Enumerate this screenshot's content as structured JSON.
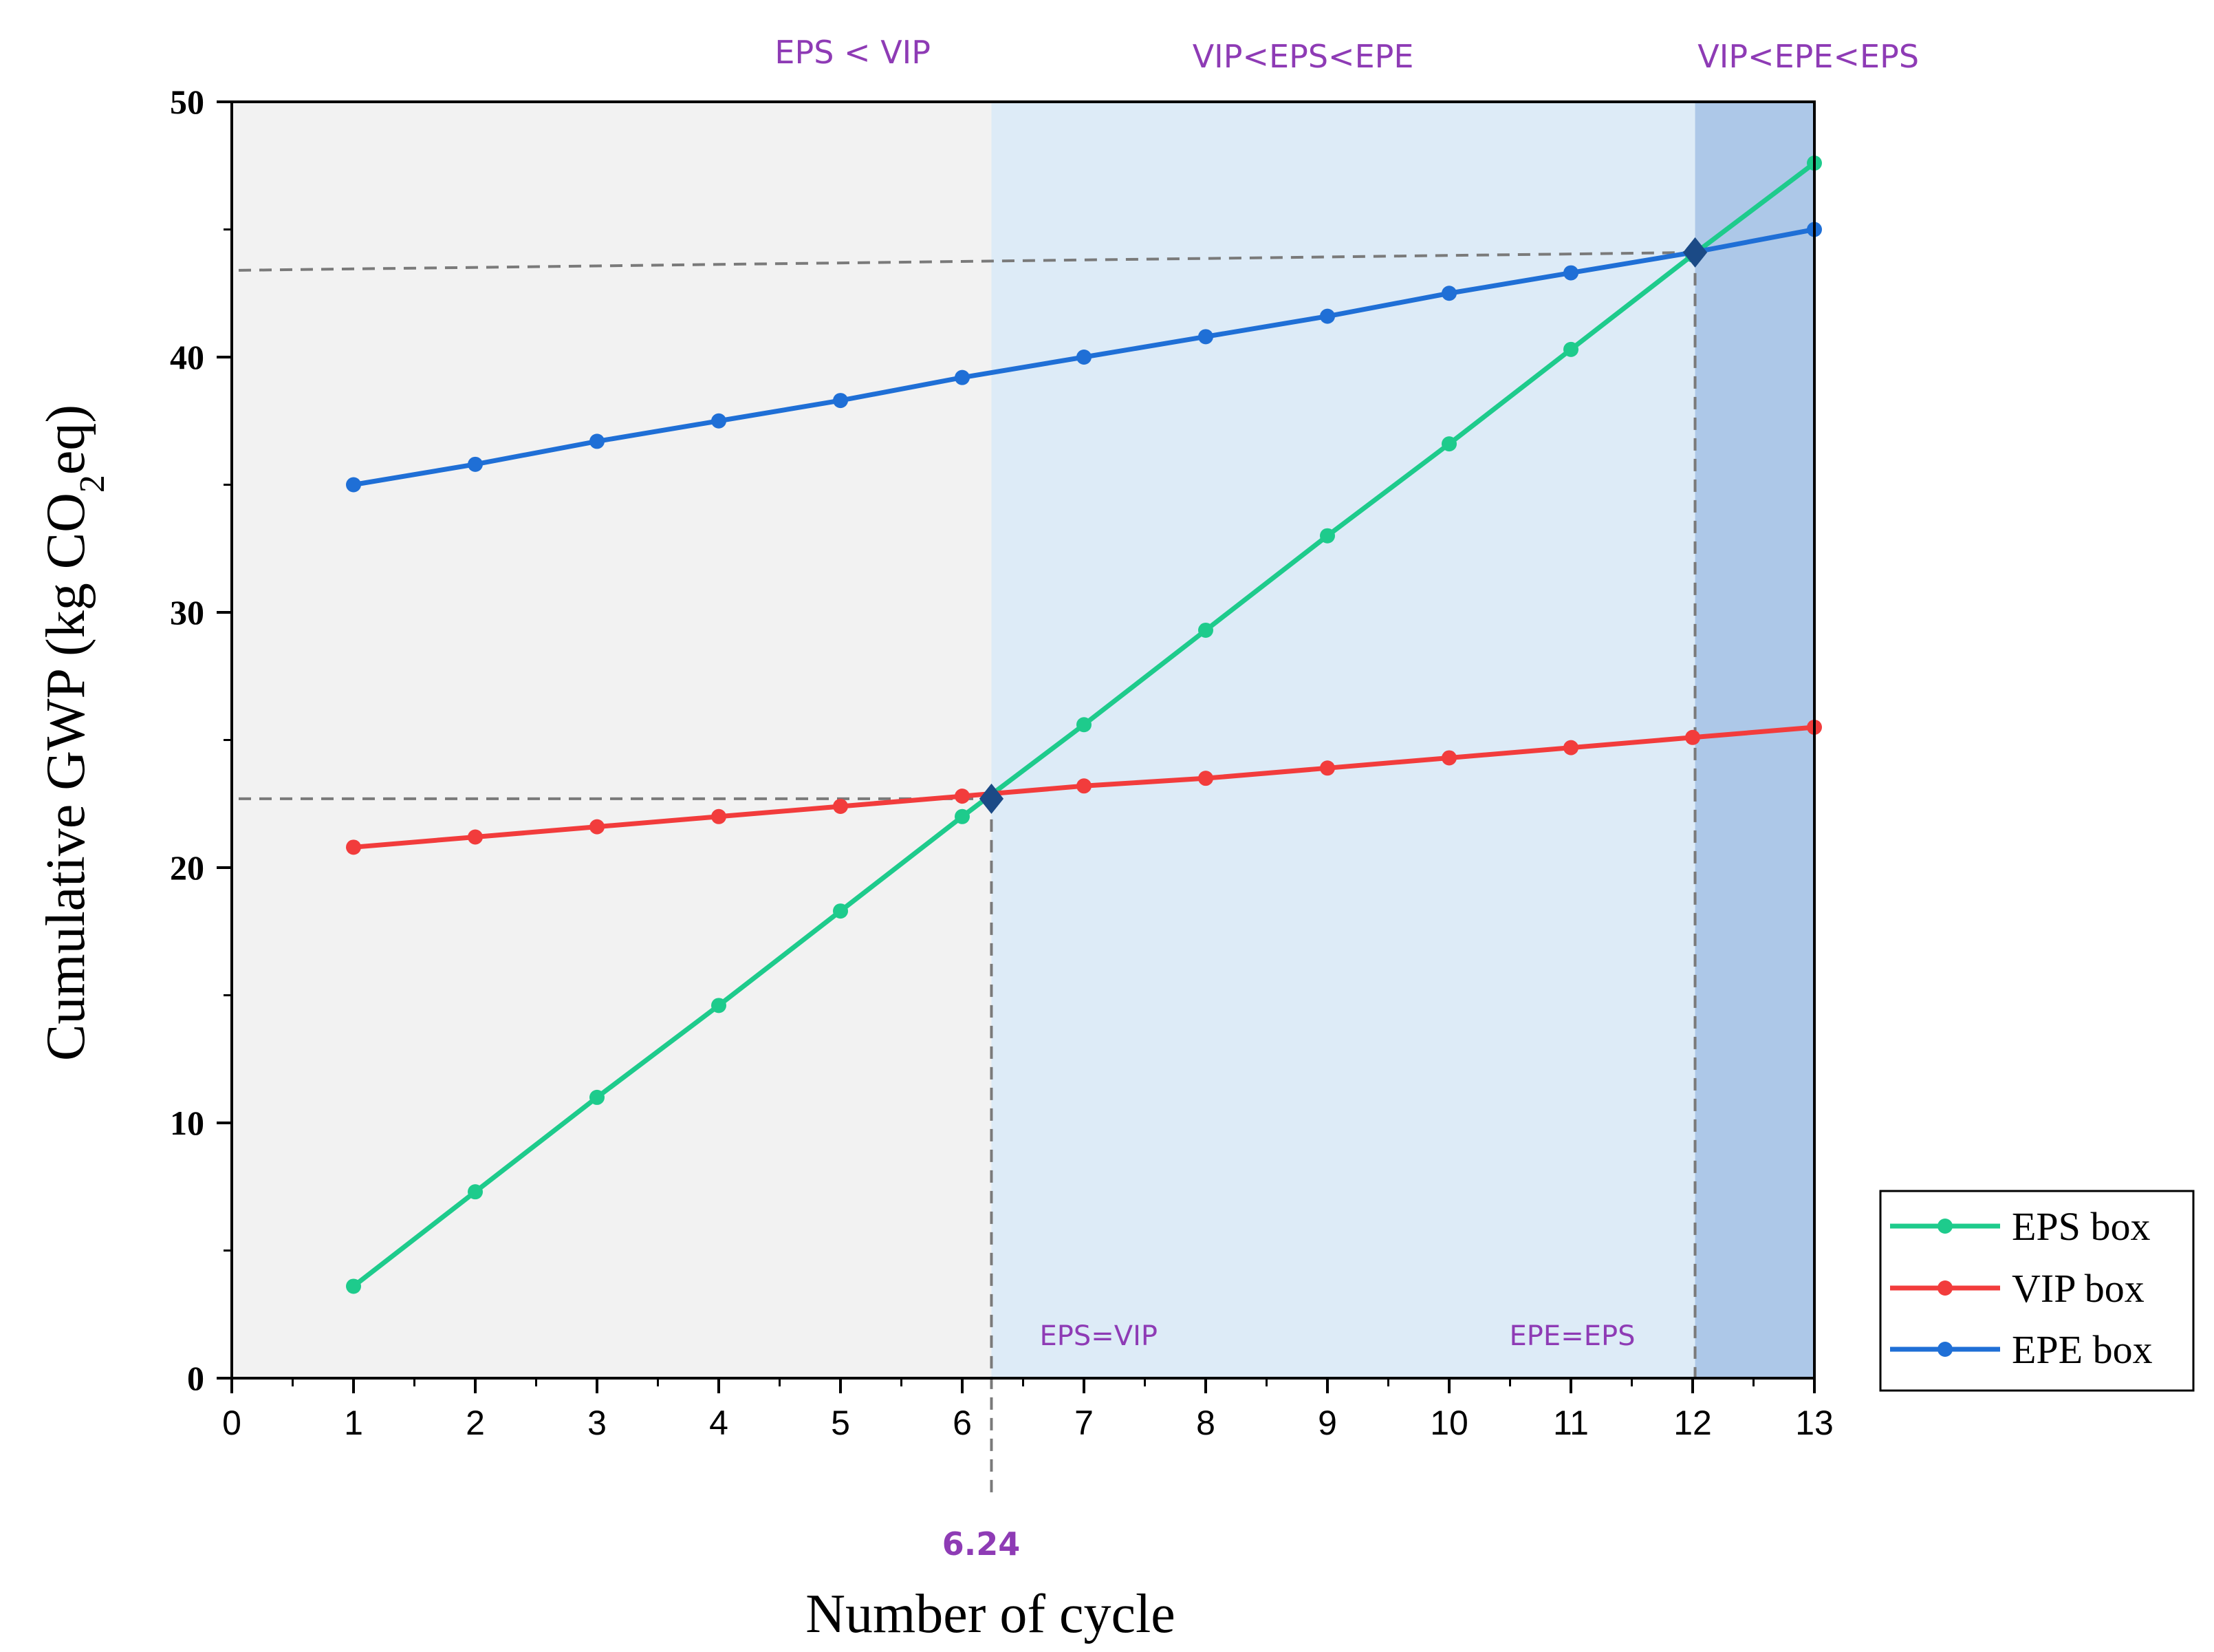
{
  "chart_data": {
    "type": "line",
    "xlabel": "Number of cycle",
    "ylabel": "Cumulative GWP (kg CO2eq)",
    "xlim": [
      0,
      13
    ],
    "ylim": [
      0,
      50
    ],
    "x": [
      1,
      2,
      3,
      4,
      5,
      6,
      7,
      8,
      9,
      10,
      11,
      12,
      13
    ],
    "x_ticks": [
      "0",
      "1",
      "2",
      "3",
      "4",
      "5",
      "6",
      "7",
      "8",
      "9",
      "10",
      "11",
      "12",
      "13"
    ],
    "y_ticks": [
      "0",
      "10",
      "20",
      "30",
      "40",
      "50"
    ],
    "series": [
      {
        "name": "EPS box",
        "color": "#1ecb8c",
        "values": [
          3.6,
          7.3,
          11.0,
          14.6,
          18.3,
          22.0,
          25.6,
          29.3,
          33.0,
          36.6,
          40.3,
          44.0,
          47.6
        ]
      },
      {
        "name": "VIP box",
        "color": "#f23c3c",
        "values": [
          20.8,
          21.2,
          21.6,
          22.0,
          22.4,
          22.8,
          23.2,
          23.5,
          23.9,
          24.3,
          24.7,
          25.1,
          25.5
        ]
      },
      {
        "name": "EPE box",
        "color": "#1f6fd6",
        "values": [
          35.0,
          35.8,
          36.7,
          37.5,
          38.3,
          39.2,
          40.0,
          40.8,
          41.6,
          42.5,
          43.3,
          44.1,
          45.0
        ]
      }
    ],
    "intersections": [
      {
        "x": 6.24,
        "y": 22.7,
        "label": "EPS=VIP",
        "x_label": "6.24"
      },
      {
        "x": 12.02,
        "y": 44.1,
        "label": "EPE=EPS"
      }
    ],
    "regions": [
      {
        "from": 0,
        "to": 6.24,
        "label": "EPS < VIP",
        "color": "#f2f2f2"
      },
      {
        "from": 6.24,
        "to": 12.02,
        "label": "VIP<EPS<EPE",
        "color": "#ddebf7"
      },
      {
        "from": 12.02,
        "to": 13,
        "label": "VIP<EPE<EPS",
        "color": "#adc8e8"
      }
    ],
    "annotation_color": "#8e3bb5",
    "legend_position": "right, below plot"
  }
}
